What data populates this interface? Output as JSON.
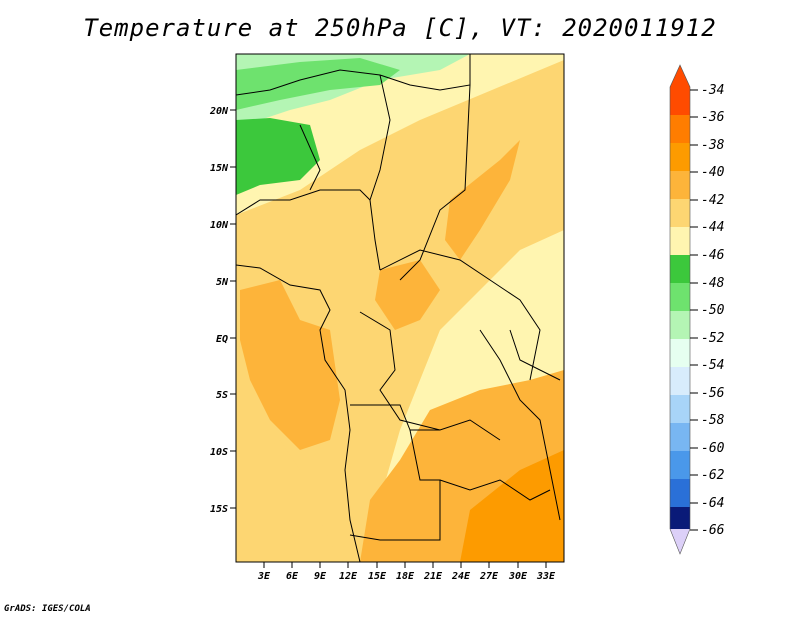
{
  "title": "Temperature at 250hPa [C], VT: 2020011912",
  "footer": "GrADS: IGES/COLA",
  "lat_labels": [
    "20N",
    "15N",
    "10N",
    "5N",
    "EQ",
    "5S",
    "10S",
    "15S"
  ],
  "lon_labels": [
    "3E",
    "6E",
    "9E",
    "12E",
    "15E",
    "18E",
    "21E",
    "24E",
    "27E",
    "30E",
    "33E"
  ],
  "colorbar_labels": [
    "-34",
    "-36",
    "-38",
    "-40",
    "-42",
    "-44",
    "-46",
    "-48",
    "-50",
    "-52",
    "-54",
    "-56",
    "-58",
    "-60",
    "-62",
    "-64",
    "-66"
  ],
  "colors": {
    "c_34": "#ff4b00",
    "c_36": "#ff7d00",
    "c_38": "#fd9b00",
    "c_40": "#fdb43a",
    "c_42": "#fdd672",
    "c_44": "#fff5b0",
    "c_46": "#3cc83c",
    "c_48": "#6ee26e",
    "c_50": "#b4f5b4",
    "c_52": "#e6fff0",
    "c_54": "#d8ecfc",
    "c_56": "#a8d4f8",
    "c_58": "#78b6f2",
    "c_60": "#4a98ea",
    "c_62": "#2a70d8",
    "c_64": "#1648b0",
    "c_66": "#0a1a78",
    "c_bottom": "#dcd0f8"
  }
}
